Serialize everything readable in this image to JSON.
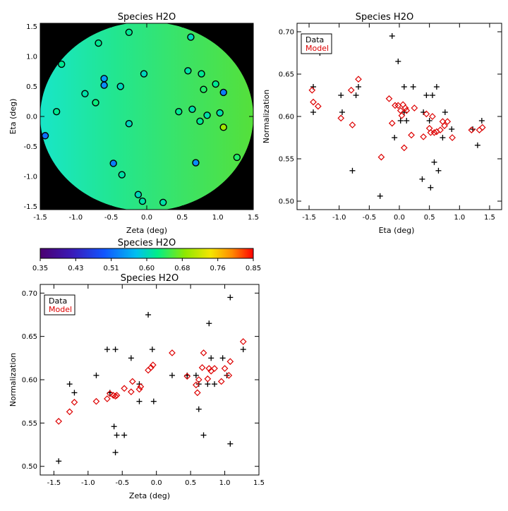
{
  "chart_data": [
    {
      "id": "map",
      "type": "scatter",
      "title": "Species H2O",
      "xlabel": "Zeta (deg)",
      "ylabel": "Eta (deg)",
      "xlim": [
        -1.5,
        1.5
      ],
      "ylim": [
        -1.55,
        1.55
      ],
      "xticks": [
        "-1.5",
        "-1.0",
        "-0.5",
        "0.0",
        "0.5",
        "1.0",
        "1.5"
      ],
      "yticks": [
        "-1.5",
        "-1.0",
        "-0.5",
        "0.0",
        "0.5",
        "1.0",
        "1.5"
      ],
      "background": "#000000",
      "field": "interpolated normalization colour map",
      "colorbar": {
        "title": "Species H2O",
        "range": [
          0.35,
          0.85
        ],
        "ticks": [
          "0.35",
          "0.43",
          "0.51",
          "0.60",
          "0.68",
          "0.76",
          "0.85"
        ],
        "colormap": "rainbow"
      },
      "points": [
        {
          "x": -1.43,
          "y": -0.32,
          "v": 0.52
        },
        {
          "x": -1.2,
          "y": 0.87,
          "v": 0.62
        },
        {
          "x": -1.27,
          "y": 0.08,
          "v": 0.62
        },
        {
          "x": -0.87,
          "y": 0.38,
          "v": 0.61
        },
        {
          "x": -0.72,
          "y": 0.23,
          "v": 0.63
        },
        {
          "x": -0.68,
          "y": 1.22,
          "v": 0.62
        },
        {
          "x": -0.6,
          "y": 0.63,
          "v": 0.55
        },
        {
          "x": -0.6,
          "y": 0.52,
          "v": 0.54
        },
        {
          "x": -0.47,
          "y": -0.78,
          "v": 0.53
        },
        {
          "x": -0.37,
          "y": 0.5,
          "v": 0.6
        },
        {
          "x": -0.35,
          "y": -0.97,
          "v": 0.61
        },
        {
          "x": -0.25,
          "y": 1.4,
          "v": 0.62
        },
        {
          "x": -0.25,
          "y": -0.12,
          "v": 0.6
        },
        {
          "x": -0.12,
          "y": -1.3,
          "v": 0.6
        },
        {
          "x": -0.06,
          "y": -1.41,
          "v": 0.61
        },
        {
          "x": -0.04,
          "y": 0.71,
          "v": 0.6
        },
        {
          "x": 0.23,
          "y": -1.43,
          "v": 0.61
        },
        {
          "x": 0.45,
          "y": 0.08,
          "v": 0.62
        },
        {
          "x": 0.58,
          "y": 0.76,
          "v": 0.61
        },
        {
          "x": 0.62,
          "y": 1.32,
          "v": 0.6
        },
        {
          "x": 0.64,
          "y": 0.12,
          "v": 0.61
        },
        {
          "x": 0.69,
          "y": -0.77,
          "v": 0.54
        },
        {
          "x": 0.75,
          "y": -0.08,
          "v": 0.62
        },
        {
          "x": 0.77,
          "y": 0.71,
          "v": 0.62
        },
        {
          "x": 0.8,
          "y": 0.45,
          "v": 0.64
        },
        {
          "x": 0.85,
          "y": 0.02,
          "v": 0.61
        },
        {
          "x": 0.97,
          "y": 0.54,
          "v": 0.62
        },
        {
          "x": 1.03,
          "y": 0.06,
          "v": 0.61
        },
        {
          "x": 1.08,
          "y": 0.4,
          "v": 0.53
        },
        {
          "x": 1.08,
          "y": -0.18,
          "v": 0.7
        },
        {
          "x": 1.27,
          "y": -0.68,
          "v": 0.64
        }
      ]
    },
    {
      "id": "eta",
      "type": "scatter",
      "title": "Species H2O",
      "xlabel": "Eta (deg)",
      "ylabel": "Normalization",
      "xlim": [
        -1.7,
        1.7
      ],
      "ylim": [
        0.49,
        0.71
      ],
      "xticks": [
        "-1.5",
        "-1.0",
        "-0.5",
        "0.0",
        "0.5",
        "1.0",
        "1.5"
      ],
      "yticks": [
        "0.50",
        "0.55",
        "0.60",
        "0.65",
        "0.70"
      ],
      "legend": {
        "placement": "top-left",
        "items": [
          {
            "label": "Data",
            "color": "#000000"
          },
          {
            "label": "Model",
            "color": "#dd0000"
          }
        ]
      },
      "series": [
        {
          "name": "Data",
          "marker": "plus",
          "color": "#000000",
          "points": [
            [
              -1.43,
              0.635
            ],
            [
              -1.43,
              0.605
            ],
            [
              -1.32,
              0.675
            ],
            [
              -0.97,
              0.625
            ],
            [
              -0.95,
              0.605
            ],
            [
              -0.78,
              0.536
            ],
            [
              -0.72,
              0.625
            ],
            [
              -0.68,
              0.635
            ],
            [
              -0.32,
              0.506
            ],
            [
              -0.12,
              0.695
            ],
            [
              -0.08,
              0.575
            ],
            [
              -0.02,
              0.665
            ],
            [
              0.02,
              0.595
            ],
            [
              0.08,
              0.635
            ],
            [
              0.08,
              0.605
            ],
            [
              0.12,
              0.595
            ],
            [
              0.23,
              0.635
            ],
            [
              0.38,
              0.526
            ],
            [
              0.4,
              0.605
            ],
            [
              0.45,
              0.625
            ],
            [
              0.5,
              0.595
            ],
            [
              0.52,
              0.516
            ],
            [
              0.55,
              0.625
            ],
            [
              0.58,
              0.546
            ],
            [
              0.62,
              0.635
            ],
            [
              0.65,
              0.536
            ],
            [
              0.72,
              0.575
            ],
            [
              0.76,
              0.605
            ],
            [
              0.87,
              0.585
            ],
            [
              1.22,
              0.585
            ],
            [
              1.3,
              0.566
            ],
            [
              1.37,
              0.595
            ]
          ]
        },
        {
          "name": "Model",
          "marker": "diamond",
          "color": "#dd0000",
          "points": [
            [
              -1.45,
              0.631
            ],
            [
              -1.43,
              0.617
            ],
            [
              -1.35,
              0.612
            ],
            [
              -0.97,
              0.598
            ],
            [
              -0.8,
              0.631
            ],
            [
              -0.78,
              0.59
            ],
            [
              -0.68,
              0.644
            ],
            [
              -0.3,
              0.552
            ],
            [
              -0.17,
              0.621
            ],
            [
              -0.12,
              0.592
            ],
            [
              -0.07,
              0.613
            ],
            [
              -0.02,
              0.613
            ],
            [
              0.02,
              0.607
            ],
            [
              0.04,
              0.601
            ],
            [
              0.06,
              0.614
            ],
            [
              0.08,
              0.563
            ],
            [
              0.1,
              0.61
            ],
            [
              0.12,
              0.607
            ],
            [
              0.2,
              0.578
            ],
            [
              0.25,
              0.61
            ],
            [
              0.4,
              0.576
            ],
            [
              0.45,
              0.603
            ],
            [
              0.5,
              0.586
            ],
            [
              0.52,
              0.581
            ],
            [
              0.55,
              0.6
            ],
            [
              0.58,
              0.581
            ],
            [
              0.62,
              0.582
            ],
            [
              0.68,
              0.584
            ],
            [
              0.72,
              0.594
            ],
            [
              0.75,
              0.589
            ],
            [
              0.8,
              0.594
            ],
            [
              0.88,
              0.575
            ],
            [
              1.2,
              0.584
            ],
            [
              1.33,
              0.584
            ],
            [
              1.38,
              0.587
            ]
          ]
        }
      ]
    },
    {
      "id": "zeta",
      "type": "scatter",
      "title": "Species H2O",
      "xlabel": "Zeta (deg)",
      "ylabel": "Normalization",
      "xlim": [
        -1.7,
        1.5
      ],
      "ylim": [
        0.49,
        0.71
      ],
      "xticks": [
        "-1.5",
        "-1.0",
        "-0.5",
        "0.0",
        "0.5",
        "1.0",
        "1.5"
      ],
      "yticks": [
        "0.50",
        "0.55",
        "0.60",
        "0.65",
        "0.70"
      ],
      "legend": {
        "placement": "top-left",
        "items": [
          {
            "label": "Data",
            "color": "#000000"
          },
          {
            "label": "Model",
            "color": "#dd0000"
          }
        ]
      },
      "series": [
        {
          "name": "Data",
          "marker": "plus",
          "color": "#000000",
          "points": [
            [
              -1.43,
              0.506
            ],
            [
              -1.27,
              0.595
            ],
            [
              -1.2,
              0.585
            ],
            [
              -0.88,
              0.605
            ],
            [
              -0.72,
              0.635
            ],
            [
              -0.68,
              0.585
            ],
            [
              -0.62,
              0.546
            ],
            [
              -0.6,
              0.635
            ],
            [
              -0.6,
              0.516
            ],
            [
              -0.58,
              0.536
            ],
            [
              -0.47,
              0.536
            ],
            [
              -0.37,
              0.625
            ],
            [
              -0.25,
              0.595
            ],
            [
              -0.25,
              0.575
            ],
            [
              -0.12,
              0.675
            ],
            [
              -0.06,
              0.635
            ],
            [
              -0.04,
              0.575
            ],
            [
              0.23,
              0.605
            ],
            [
              0.45,
              0.605
            ],
            [
              0.58,
              0.605
            ],
            [
              0.62,
              0.566
            ],
            [
              0.62,
              0.595
            ],
            [
              0.69,
              0.536
            ],
            [
              0.75,
              0.595
            ],
            [
              0.77,
              0.665
            ],
            [
              0.8,
              0.625
            ],
            [
              0.85,
              0.595
            ],
            [
              0.97,
              0.625
            ],
            [
              1.03,
              0.605
            ],
            [
              1.08,
              0.526
            ],
            [
              1.08,
              0.695
            ],
            [
              1.27,
              0.635
            ]
          ]
        },
        {
          "name": "Model",
          "marker": "diamond",
          "color": "#dd0000",
          "points": [
            [
              -1.43,
              0.552
            ],
            [
              -1.27,
              0.563
            ],
            [
              -1.2,
              0.574
            ],
            [
              -0.88,
              0.575
            ],
            [
              -0.72,
              0.578
            ],
            [
              -0.68,
              0.584
            ],
            [
              -0.63,
              0.582
            ],
            [
              -0.6,
              0.581
            ],
            [
              -0.58,
              0.582
            ],
            [
              -0.47,
              0.59
            ],
            [
              -0.37,
              0.586
            ],
            [
              -0.35,
              0.598
            ],
            [
              -0.25,
              0.589
            ],
            [
              -0.23,
              0.592
            ],
            [
              -0.12,
              0.611
            ],
            [
              -0.08,
              0.614
            ],
            [
              -0.05,
              0.617
            ],
            [
              0.23,
              0.631
            ],
            [
              0.45,
              0.604
            ],
            [
              0.58,
              0.594
            ],
            [
              0.6,
              0.585
            ],
            [
              0.62,
              0.6
            ],
            [
              0.67,
              0.614
            ],
            [
              0.69,
              0.631
            ],
            [
              0.75,
              0.601
            ],
            [
              0.77,
              0.613
            ],
            [
              0.8,
              0.61
            ],
            [
              0.85,
              0.613
            ],
            [
              0.95,
              0.598
            ],
            [
              1.0,
              0.613
            ],
            [
              1.06,
              0.605
            ],
            [
              1.08,
              0.621
            ],
            [
              1.27,
              0.644
            ]
          ]
        }
      ]
    }
  ]
}
